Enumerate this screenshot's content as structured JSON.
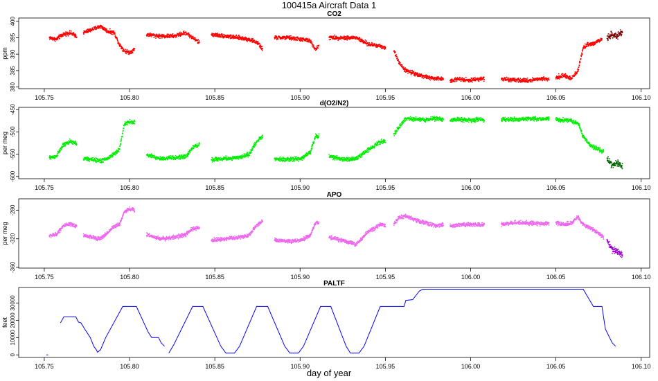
{
  "figure": {
    "main_title": "100415a   Aircraft Data 1",
    "x_axis_label": "day of year"
  },
  "colors": {
    "co2": "#ff0000",
    "co2_dark": "#7a0000",
    "o2n2": "#00ee00",
    "o2n2_dark": "#006400",
    "apo": "#ee66ee",
    "apo_dark": "#9a00c8",
    "paltf": "#0000ff",
    "axis": "#000000"
  },
  "chart_data": [
    {
      "id": "co2",
      "type": "scatter",
      "title": "CO2",
      "ylabel": "ppm",
      "xlim": [
        105.735,
        106.105
      ],
      "ylim": [
        379.5,
        401
      ],
      "x_ticks": [
        "105.75",
        "105.80",
        "105.85",
        "105.90",
        "105.95",
        "106.00",
        "106.05",
        "106.10"
      ],
      "y_ticks": [
        "380",
        "385",
        "390",
        "395",
        "400"
      ],
      "segments": [
        {
          "x": [
            105.753,
            105.757,
            105.761,
            105.765,
            105.769
          ],
          "y": [
            395.0,
            394.5,
            396.0,
            396.5,
            395.5
          ]
        },
        {
          "x": [
            105.773,
            105.778,
            105.783,
            105.787,
            105.791,
            105.794,
            105.797,
            105.8,
            105.803
          ],
          "y": [
            396.5,
            397.5,
            398.5,
            397.0,
            396.5,
            393.0,
            391.0,
            390.5,
            391.5
          ]
        },
        {
          "x": [
            105.81,
            105.818,
            105.826,
            105.833,
            105.837,
            105.841
          ],
          "y": [
            396.0,
            395.5,
            395.5,
            396.5,
            395.0,
            393.5
          ]
        },
        {
          "x": [
            105.848,
            105.856,
            105.864,
            105.87,
            105.875,
            105.878
          ],
          "y": [
            396.0,
            395.5,
            395.0,
            394.5,
            393.5,
            391.5
          ]
        },
        {
          "x": [
            105.885,
            105.893,
            105.901,
            105.906,
            105.909,
            105.911
          ],
          "y": [
            395.0,
            395.0,
            394.5,
            394.0,
            391.5,
            392.5
          ]
        },
        {
          "x": [
            105.917,
            105.925,
            105.933,
            105.94,
            105.947,
            105.95
          ],
          "y": [
            395.0,
            395.0,
            395.0,
            393.0,
            392.5,
            392.0
          ]
        },
        {
          "x": [
            105.955,
            105.958,
            105.962,
            105.968,
            105.974,
            105.98,
            105.984
          ],
          "y": [
            391.0,
            387.5,
            385.0,
            384.0,
            383.0,
            382.5,
            382.5
          ]
        },
        {
          "x": [
            105.988,
            105.994,
            106.0,
            106.004,
            106.008
          ],
          "y": [
            382.0,
            382.5,
            382.0,
            382.5,
            382.5
          ]
        },
        {
          "x": [
            106.018,
            106.026,
            106.034,
            106.04,
            106.046
          ],
          "y": [
            382.5,
            382.0,
            382.0,
            382.5,
            382.5
          ]
        },
        {
          "x": [
            106.05,
            106.055,
            106.059,
            106.063,
            106.066,
            106.069,
            106.073,
            106.077
          ],
          "y": [
            383.0,
            383.5,
            382.5,
            385.0,
            392.0,
            393.0,
            393.5,
            394.5
          ]
        },
        {
          "x": [
            106.08,
            106.083,
            106.086,
            106.089
          ],
          "y": [
            395.0,
            396.0,
            395.5,
            396.5
          ],
          "dark": true
        }
      ]
    },
    {
      "id": "o2n2",
      "type": "scatter",
      "title": "d(O2/N2)",
      "ylabel": "per meg",
      "xlim": [
        105.735,
        106.105
      ],
      "ylim": [
        -605,
        -445
      ],
      "x_ticks": [
        "105.75",
        "105.80",
        "105.85",
        "105.90",
        "105.95",
        "106.00",
        "106.05",
        "106.10"
      ],
      "y_ticks": [
        "-600",
        "-550",
        "-500",
        "-450"
      ],
      "segments": [
        {
          "x": [
            105.753,
            105.757,
            105.761,
            105.765,
            105.769
          ],
          "y": [
            -558,
            -555,
            -530,
            -522,
            -526
          ]
        },
        {
          "x": [
            105.773,
            105.778,
            105.783,
            105.787,
            105.79,
            105.794,
            105.797,
            105.8,
            105.803
          ],
          "y": [
            -560,
            -562,
            -565,
            -560,
            -552,
            -540,
            -482,
            -478,
            -478
          ]
        },
        {
          "x": [
            105.81,
            105.818,
            105.826,
            105.833,
            105.837,
            105.841
          ],
          "y": [
            -552,
            -560,
            -558,
            -556,
            -535,
            -528
          ]
        },
        {
          "x": [
            105.848,
            105.856,
            105.864,
            105.87,
            105.875,
            105.878
          ],
          "y": [
            -562,
            -560,
            -558,
            -550,
            -520,
            -510
          ]
        },
        {
          "x": [
            105.885,
            105.893,
            105.901,
            105.906,
            105.909,
            105.911
          ],
          "y": [
            -560,
            -562,
            -560,
            -545,
            -510,
            -508
          ]
        },
        {
          "x": [
            105.917,
            105.925,
            105.933,
            105.94,
            105.947,
            105.95
          ],
          "y": [
            -555,
            -562,
            -560,
            -540,
            -522,
            -520
          ]
        },
        {
          "x": [
            105.955,
            105.958,
            105.962,
            105.968,
            105.974,
            105.98,
            105.984
          ],
          "y": [
            -505,
            -490,
            -470,
            -472,
            -472,
            -470,
            -472
          ]
        },
        {
          "x": [
            105.988,
            105.994,
            106.0,
            106.004,
            106.008
          ],
          "y": [
            -473,
            -472,
            -474,
            -472,
            -473
          ]
        },
        {
          "x": [
            106.018,
            106.026,
            106.034,
            106.04,
            106.046
          ],
          "y": [
            -472,
            -472,
            -470,
            -471,
            -470
          ]
        },
        {
          "x": [
            106.05,
            106.055,
            106.059,
            106.063,
            106.066,
            106.07,
            106.074,
            106.078
          ],
          "y": [
            -472,
            -474,
            -475,
            -480,
            -510,
            -530,
            -538,
            -545
          ]
        },
        {
          "x": [
            106.08,
            106.083,
            106.086,
            106.089
          ],
          "y": [
            -562,
            -575,
            -570,
            -578
          ],
          "dark": true
        }
      ]
    },
    {
      "id": "apo",
      "type": "scatter",
      "title": "APO",
      "ylabel": "per meg",
      "xlim": [
        105.735,
        106.105
      ],
      "ylim": [
        -361,
        -264
      ],
      "x_ticks": [
        "105.75",
        "105.80",
        "105.85",
        "105.90",
        "105.95",
        "106.00",
        "106.05",
        "106.10"
      ],
      "y_ticks": [
        "-360",
        "-320",
        "-280"
      ],
      "segments": [
        {
          "x": [
            105.753,
            105.757,
            105.761,
            105.765,
            105.769
          ],
          "y": [
            -316,
            -314,
            -302,
            -300,
            -302
          ]
        },
        {
          "x": [
            105.773,
            105.778,
            105.783,
            105.787,
            105.79,
            105.794,
            105.797,
            105.8,
            105.803
          ],
          "y": [
            -315,
            -318,
            -320,
            -312,
            -304,
            -300,
            -282,
            -278,
            -280
          ]
        },
        {
          "x": [
            105.81,
            105.818,
            105.826,
            105.833,
            105.837,
            105.841
          ],
          "y": [
            -314,
            -320,
            -318,
            -314,
            -306,
            -305
          ]
        },
        {
          "x": [
            105.848,
            105.856,
            105.864,
            105.87,
            105.875,
            105.878
          ],
          "y": [
            -322,
            -320,
            -318,
            -315,
            -300,
            -295
          ]
        },
        {
          "x": [
            105.885,
            105.893,
            105.901,
            105.906,
            105.909,
            105.911
          ],
          "y": [
            -322,
            -324,
            -322,
            -315,
            -298,
            -297
          ]
        },
        {
          "x": [
            105.917,
            105.925,
            105.933,
            105.94,
            105.947,
            105.95
          ],
          "y": [
            -318,
            -322,
            -328,
            -310,
            -300,
            -302
          ]
        },
        {
          "x": [
            105.955,
            105.958,
            105.962,
            105.968,
            105.974,
            105.98,
            105.984
          ],
          "y": [
            -300,
            -290,
            -288,
            -294,
            -298,
            -302,
            -300
          ]
        },
        {
          "x": [
            105.988,
            105.994,
            106.0,
            106.004,
            106.008
          ],
          "y": [
            -302,
            -300,
            -300,
            -301,
            -300
          ]
        },
        {
          "x": [
            106.018,
            106.026,
            106.034,
            106.04,
            106.046
          ],
          "y": [
            -300,
            -297,
            -298,
            -299,
            -298
          ]
        },
        {
          "x": [
            106.05,
            106.055,
            106.059,
            106.063,
            106.066,
            106.07,
            106.074,
            106.078
          ],
          "y": [
            -298,
            -300,
            -298,
            -290,
            -300,
            -305,
            -310,
            -318
          ]
        },
        {
          "x": [
            106.08,
            106.083,
            106.086,
            106.089
          ],
          "y": [
            -322,
            -335,
            -338,
            -342
          ],
          "dark": true
        }
      ]
    },
    {
      "id": "paltf",
      "type": "line",
      "title": "PALTF",
      "ylabel": "feet",
      "xlim": [
        105.735,
        106.105
      ],
      "ylim": [
        -1500,
        39000
      ],
      "x_ticks": [
        "105.75",
        "105.80",
        "105.85",
        "105.90",
        "105.95",
        "106.00",
        "106.05",
        "106.10"
      ],
      "y_ticks": [
        "0",
        "10000",
        "20000",
        "30000"
      ],
      "segments": [
        {
          "x": [
            105.7512,
            105.7523
          ],
          "y": [
            0,
            0
          ]
        },
        {
          "x": [
            105.7595,
            105.7615,
            105.7685,
            105.77,
            105.7715,
            105.774,
            105.777,
            105.779,
            105.7805,
            105.7812,
            105.783,
            105.786,
            105.796,
            105.804,
            105.811,
            105.813,
            105.817,
            105.8185,
            105.8205
          ],
          "y": [
            18500,
            22000,
            22000,
            19000,
            18500,
            14500,
            10000,
            5000,
            3000,
            1500,
            3000,
            10000,
            28000,
            28000,
            13000,
            10000,
            10000,
            7000,
            5000
          ]
        },
        {
          "x": [
            105.823,
            105.826,
            105.837,
            105.843,
            105.8535,
            105.8565,
            105.8615,
            105.8645,
            105.8745,
            105.881,
            105.891,
            105.894,
            105.899,
            105.902,
            105.912,
            105.918,
            105.927,
            105.9295,
            105.9345,
            105.9375,
            105.947,
            105.961,
            105.962,
            105.966,
            105.97,
            105.972,
            106.066,
            106.072,
            106.077,
            106.079,
            106.083,
            106.085
          ],
          "y": [
            1000,
            6000,
            28000,
            28000,
            5000,
            1000,
            1000,
            5000,
            28000,
            28000,
            5000,
            1000,
            1000,
            5000,
            28000,
            28000,
            5000,
            1000,
            1000,
            5000,
            28000,
            28000,
            31500,
            32000,
            37000,
            38000,
            38000,
            28000,
            28000,
            15000,
            7000,
            5000
          ]
        }
      ]
    }
  ]
}
